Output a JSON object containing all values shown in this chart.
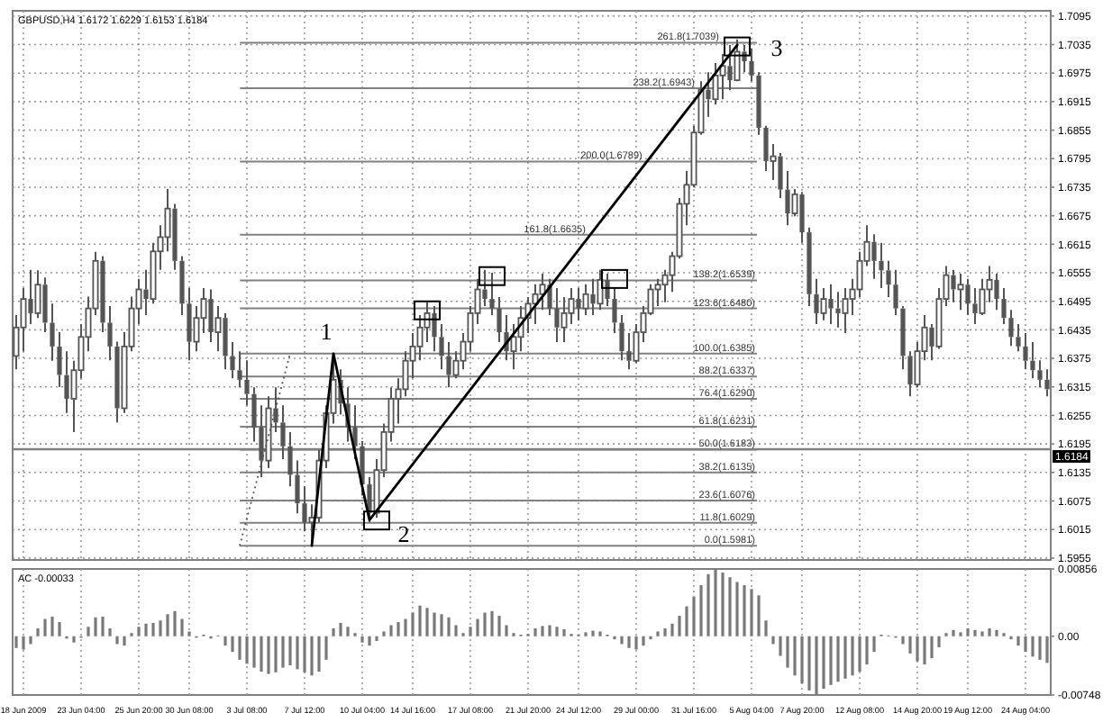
{
  "chart_data": [
    {
      "type": "candlestick",
      "title": "GBPUSD,H4  1.6172 1.6229 1.6153 1.6184",
      "color": "#555555",
      "tick_labels": "y",
      "grid": true,
      "ohlc": [
        [
          1.638,
          1.6466,
          1.6352,
          1.644
        ],
        [
          1.644,
          1.6523,
          1.639,
          1.65
        ],
        [
          1.65,
          1.6561,
          1.6447,
          1.647
        ],
        [
          1.647,
          1.656,
          1.646,
          1.653
        ],
        [
          1.653,
          1.6545,
          1.643,
          1.645
        ],
        [
          1.645,
          1.649,
          1.637,
          1.64
        ],
        [
          1.64,
          1.643,
          1.6315,
          1.634
        ],
        [
          1.634,
          1.639,
          1.626,
          1.629
        ],
        [
          1.629,
          1.637,
          1.622,
          1.635
        ],
        [
          1.635,
          1.6447,
          1.6333,
          1.642
        ],
        [
          1.642,
          1.6505,
          1.639,
          1.648
        ],
        [
          1.648,
          1.6599,
          1.6466,
          1.658
        ],
        [
          1.658,
          1.659,
          1.643,
          1.645
        ],
        [
          1.645,
          1.6485,
          1.6371,
          1.64
        ],
        [
          1.64,
          1.641,
          1.624,
          1.627
        ],
        [
          1.627,
          1.643,
          1.626,
          1.64
        ],
        [
          1.64,
          1.6505,
          1.639,
          1.648
        ],
        [
          1.648,
          1.6542,
          1.6447,
          1.652
        ],
        [
          1.652,
          1.6561,
          1.6466,
          1.65
        ],
        [
          1.65,
          1.6618,
          1.649,
          1.66
        ],
        [
          1.66,
          1.6655,
          1.6561,
          1.663
        ],
        [
          1.663,
          1.6731,
          1.66,
          1.669
        ],
        [
          1.669,
          1.67,
          1.6561,
          1.658
        ],
        [
          1.658,
          1.659,
          1.6466,
          1.649
        ],
        [
          1.649,
          1.6523,
          1.6371,
          1.641
        ],
        [
          1.641,
          1.6485,
          1.639,
          1.646
        ],
        [
          1.646,
          1.6523,
          1.6428,
          1.65
        ],
        [
          1.65,
          1.652,
          1.6409,
          1.643
        ],
        [
          1.643,
          1.6485,
          1.639,
          1.646
        ],
        [
          1.646,
          1.647,
          1.6352,
          1.638
        ],
        [
          1.638,
          1.6409,
          1.6333,
          1.635
        ],
        [
          1.635,
          1.639,
          1.6314,
          1.633
        ],
        [
          1.633,
          1.6371,
          1.6276,
          1.63
        ],
        [
          1.63,
          1.6314,
          1.62,
          1.623
        ],
        [
          1.623,
          1.6276,
          1.6125,
          1.616
        ],
        [
          1.616,
          1.6295,
          1.6144,
          1.627
        ],
        [
          1.627,
          1.6314,
          1.622,
          1.624
        ],
        [
          1.624,
          1.6276,
          1.6163,
          1.619
        ],
        [
          1.619,
          1.622,
          1.6106,
          1.613
        ],
        [
          1.613,
          1.616,
          1.6049,
          1.607
        ],
        [
          1.607,
          1.6106,
          1.6011,
          1.603
        ],
        [
          1.603,
          1.6068,
          1.5981,
          1.604
        ],
        [
          1.604,
          1.6182,
          1.603,
          1.616
        ],
        [
          1.616,
          1.6276,
          1.6144,
          1.626
        ],
        [
          1.626,
          1.6385,
          1.6238,
          1.633
        ],
        [
          1.633,
          1.6352,
          1.6257,
          1.628
        ],
        [
          1.628,
          1.6314,
          1.62,
          1.623
        ],
        [
          1.623,
          1.6276,
          1.6163,
          1.619
        ],
        [
          1.619,
          1.6201,
          1.6087,
          1.611
        ],
        [
          1.611,
          1.6125,
          1.603,
          1.605
        ],
        [
          1.605,
          1.6163,
          1.604,
          1.614
        ],
        [
          1.614,
          1.6238,
          1.6125,
          1.622
        ],
        [
          1.622,
          1.6314,
          1.62,
          1.629
        ],
        [
          1.629,
          1.6333,
          1.6238,
          1.631
        ],
        [
          1.631,
          1.639,
          1.6295,
          1.637
        ],
        [
          1.637,
          1.6428,
          1.6333,
          1.64
        ],
        [
          1.64,
          1.6466,
          1.6371,
          1.644
        ],
        [
          1.644,
          1.6493,
          1.6409,
          1.647
        ],
        [
          1.647,
          1.6485,
          1.639,
          1.642
        ],
        [
          1.642,
          1.6447,
          1.6352,
          1.638
        ],
        [
          1.638,
          1.6409,
          1.6314,
          1.634
        ],
        [
          1.634,
          1.639,
          1.6333,
          1.637
        ],
        [
          1.637,
          1.6428,
          1.6352,
          1.641
        ],
        [
          1.641,
          1.6485,
          1.639,
          1.647
        ],
        [
          1.647,
          1.6542,
          1.6447,
          1.652
        ],
        [
          1.652,
          1.6561,
          1.6485,
          1.65
        ],
        [
          1.65,
          1.6555,
          1.6466,
          1.648
        ],
        [
          1.648,
          1.6504,
          1.6409,
          1.643
        ],
        [
          1.643,
          1.6466,
          1.6371,
          1.639
        ],
        [
          1.639,
          1.6447,
          1.6352,
          1.642
        ],
        [
          1.642,
          1.6485,
          1.639,
          1.646
        ],
        [
          1.646,
          1.6504,
          1.6428,
          1.649
        ],
        [
          1.649,
          1.6531,
          1.6447,
          1.651
        ],
        [
          1.651,
          1.6553,
          1.6477,
          1.653
        ],
        [
          1.653,
          1.6542,
          1.6466,
          1.648
        ],
        [
          1.648,
          1.6523,
          1.6409,
          1.644
        ],
        [
          1.644,
          1.6504,
          1.6409,
          1.647
        ],
        [
          1.647,
          1.6523,
          1.6447,
          1.65
        ],
        [
          1.65,
          1.6523,
          1.6455,
          1.648
        ],
        [
          1.648,
          1.6531,
          1.6466,
          1.651
        ],
        [
          1.651,
          1.6542,
          1.6466,
          1.649
        ],
        [
          1.649,
          1.6561,
          1.6477,
          1.654
        ],
        [
          1.654,
          1.6553,
          1.6485,
          1.65
        ],
        [
          1.65,
          1.6523,
          1.6428,
          1.645
        ],
        [
          1.645,
          1.6466,
          1.6371,
          1.639
        ],
        [
          1.639,
          1.6428,
          1.6352,
          1.637
        ],
        [
          1.637,
          1.6447,
          1.6365,
          1.643
        ],
        [
          1.643,
          1.6485,
          1.6409,
          1.647
        ],
        [
          1.647,
          1.6531,
          1.6466,
          1.652
        ],
        [
          1.652,
          1.6542,
          1.6485,
          1.653
        ],
        [
          1.653,
          1.6561,
          1.6493,
          1.655
        ],
        [
          1.655,
          1.6599,
          1.6515,
          1.659
        ],
        [
          1.659,
          1.6712,
          1.6585,
          1.67
        ],
        [
          1.67,
          1.6769,
          1.6655,
          1.674
        ],
        [
          1.674,
          1.6864,
          1.6735,
          1.685
        ],
        [
          1.685,
          1.6958,
          1.6845,
          1.694
        ],
        [
          1.694,
          1.6977,
          1.6883,
          1.692
        ],
        [
          1.692,
          1.6996,
          1.6909,
          1.697
        ],
        [
          1.697,
          1.7015,
          1.692,
          1.699
        ],
        [
          1.699,
          1.7034,
          1.6939,
          1.696
        ],
        [
          1.696,
          1.7046,
          1.6958,
          1.702
        ],
        [
          1.702,
          1.7034,
          1.6977,
          1.7
        ],
        [
          1.7,
          1.7027,
          1.6958,
          1.697
        ],
        [
          1.697,
          1.6977,
          1.6845,
          1.686
        ],
        [
          1.686,
          1.6864,
          1.6769,
          1.679
        ],
        [
          1.679,
          1.6826,
          1.675,
          1.68
        ],
        [
          1.68,
          1.6807,
          1.6712,
          1.673
        ],
        [
          1.673,
          1.6769,
          1.6655,
          1.668
        ],
        [
          1.668,
          1.6731,
          1.6674,
          1.672
        ],
        [
          1.672,
          1.6725,
          1.6618,
          1.664
        ],
        [
          1.664,
          1.665,
          1.6485,
          1.651
        ],
        [
          1.651,
          1.6542,
          1.6447,
          1.647
        ],
        [
          1.647,
          1.6523,
          1.6455,
          1.65
        ],
        [
          1.65,
          1.6531,
          1.6447,
          1.648
        ],
        [
          1.648,
          1.6515,
          1.644,
          1.647
        ],
        [
          1.647,
          1.6523,
          1.6428,
          1.65
        ],
        [
          1.65,
          1.6542,
          1.6466,
          1.652
        ],
        [
          1.652,
          1.6599,
          1.6504,
          1.658
        ],
        [
          1.658,
          1.6655,
          1.6569,
          1.662
        ],
        [
          1.662,
          1.6636,
          1.6542,
          1.658
        ],
        [
          1.658,
          1.6618,
          1.6523,
          1.656
        ],
        [
          1.656,
          1.658,
          1.6504,
          1.653
        ],
        [
          1.653,
          1.6561,
          1.6466,
          1.648
        ],
        [
          1.648,
          1.6485,
          1.6352,
          1.638
        ],
        [
          1.638,
          1.639,
          1.6295,
          1.632
        ],
        [
          1.632,
          1.6409,
          1.6314,
          1.639
        ],
        [
          1.639,
          1.6466,
          1.6371,
          1.644
        ],
        [
          1.644,
          1.6447,
          1.6371,
          1.64
        ],
        [
          1.64,
          1.6523,
          1.6395,
          1.65
        ],
        [
          1.65,
          1.6569,
          1.6485,
          1.655
        ],
        [
          1.655,
          1.6561,
          1.6493,
          1.652
        ],
        [
          1.652,
          1.6553,
          1.6477,
          1.653
        ],
        [
          1.653,
          1.6542,
          1.6466,
          1.649
        ],
        [
          1.649,
          1.6523,
          1.6447,
          1.647
        ],
        [
          1.647,
          1.6542,
          1.6466,
          1.652
        ],
        [
          1.652,
          1.6569,
          1.6493,
          1.654
        ],
        [
          1.654,
          1.6553,
          1.6477,
          1.65
        ],
        [
          1.65,
          1.6523,
          1.6447,
          1.646
        ],
        [
          1.646,
          1.6477,
          1.6401,
          1.642
        ],
        [
          1.642,
          1.6447,
          1.639,
          1.64
        ],
        [
          1.64,
          1.6428,
          1.6352,
          1.637
        ],
        [
          1.637,
          1.6409,
          1.6333,
          1.635
        ],
        [
          1.635,
          1.6371,
          1.6314,
          1.633
        ],
        [
          1.633,
          1.6352,
          1.6295,
          1.631
        ]
      ],
      "series": [
        {
          "type": "line",
          "color": "#000000",
          "values": [
            null,
            null,
            null,
            null,
            null,
            null,
            null,
            null,
            null,
            null,
            null,
            null,
            null,
            null,
            null,
            null,
            null,
            null,
            null,
            null,
            null,
            null,
            null,
            null,
            null,
            null,
            null,
            null,
            null,
            null,
            null,
            null,
            null,
            null,
            null,
            null,
            null,
            null,
            null,
            null,
            null,
            1.5981,
            null,
            null,
            1.6385,
            null,
            null,
            null,
            null,
            1.6035,
            null,
            null,
            null,
            null,
            null,
            null,
            null,
            null,
            null,
            null,
            null,
            null,
            null,
            null,
            null,
            null,
            null,
            null,
            null,
            null,
            null,
            null,
            null,
            null,
            null,
            null,
            null,
            null,
            null,
            null,
            null,
            null,
            null,
            null,
            null,
            null,
            null,
            null,
            null,
            null,
            null,
            null,
            null,
            null,
            null,
            null,
            null,
            null,
            null,
            null,
            1.7034,
            null,
            null,
            null,
            null,
            null,
            null,
            null,
            null,
            null,
            null,
            null,
            null,
            null,
            null,
            null,
            null,
            null,
            null,
            null,
            null,
            null,
            null,
            null,
            null,
            null,
            null,
            null,
            null,
            null,
            null,
            null,
            null,
            null,
            null,
            null,
            null,
            null,
            null,
            null,
            null,
            null,
            null,
            null
          ]
        },
        {
          "type": "line",
          "color": "#555555",
          "line_style": "dotted",
          "values": [
            null,
            null,
            null,
            null,
            null,
            null,
            null,
            null,
            null,
            null,
            null,
            null,
            null,
            null,
            null,
            null,
            null,
            null,
            null,
            null,
            null,
            null,
            null,
            null,
            null,
            null,
            null,
            null,
            null,
            null,
            null,
            1.5981,
            null,
            null,
            null,
            null,
            null,
            null,
            1.6385,
            null,
            null,
            null,
            null,
            null,
            null,
            null,
            null,
            null,
            null,
            null,
            null,
            null,
            null,
            null,
            null,
            null,
            null,
            null,
            null,
            null,
            null,
            null,
            null,
            null,
            null,
            null,
            null,
            null,
            null,
            null,
            null,
            null,
            null,
            null,
            null,
            null,
            null,
            null,
            null,
            null,
            null,
            null,
            null,
            null,
            null,
            null,
            null,
            null,
            null,
            null,
            null,
            null,
            null,
            null,
            null,
            null,
            null,
            null,
            null,
            null,
            null,
            null,
            null,
            null,
            null,
            null,
            null,
            null,
            null,
            null,
            null,
            null,
            null,
            null,
            null,
            null,
            null,
            null,
            null,
            null,
            null,
            null,
            null,
            null,
            null,
            null,
            null,
            null,
            null,
            null,
            null,
            null,
            null,
            null,
            null,
            null,
            null,
            null,
            null,
            null,
            null,
            null,
            null,
            null
          ]
        },
        {
          "type": "scatter",
          "color": "#000000",
          "marker": "square",
          "values": [
            null,
            null,
            null,
            null,
            null,
            null,
            null,
            null,
            null,
            null,
            null,
            null,
            null,
            null,
            null,
            null,
            null,
            null,
            null,
            null,
            null,
            null,
            null,
            null,
            null,
            null,
            null,
            null,
            null,
            null,
            null,
            null,
            null,
            null,
            null,
            null,
            null,
            null,
            null,
            null,
            null,
            null,
            null,
            null,
            null,
            null,
            null,
            null,
            null,
            null,
            1.6034,
            null,
            null,
            null,
            null,
            null,
            null,
            1.6476,
            null,
            null,
            null,
            null,
            null,
            null,
            null,
            null,
            1.6548,
            null,
            null,
            null,
            null,
            null,
            null,
            null,
            null,
            null,
            null,
            null,
            null,
            null,
            null,
            null,
            null,
            1.6542,
            null,
            null,
            null,
            null,
            null,
            null,
            null,
            null,
            null,
            null,
            null,
            null,
            null,
            null,
            null,
            null,
            1.7031,
            null,
            null,
            null,
            null,
            null,
            null,
            null,
            null,
            null,
            null,
            null,
            null,
            null,
            null,
            null,
            null,
            null,
            null,
            null,
            null,
            null,
            null,
            null,
            null,
            null,
            null,
            null,
            null,
            null,
            null,
            null,
            null,
            null,
            null,
            null,
            null,
            null,
            null,
            null,
            null,
            null,
            null,
            null
          ]
        }
      ],
      "annotations": [
        "1",
        "2",
        "3"
      ],
      "ref_lines": [
        {
          "axis": "y",
          "value": 1.6184,
          "label": "1.6184",
          "color": "#808080"
        },
        {
          "axis": "y",
          "value": 1.7039,
          "label": "261.8(1.7039)",
          "color": "#808080"
        },
        {
          "axis": "y",
          "value": 1.6943,
          "label": "238.2(1.6943)",
          "color": "#808080"
        },
        {
          "axis": "y",
          "value": 1.6789,
          "label": "200.0(1.6789)",
          "color": "#808080"
        },
        {
          "axis": "y",
          "value": 1.6635,
          "label": "161.8(1.6635)",
          "color": "#808080"
        },
        {
          "axis": "y",
          "value": 1.6539,
          "label": "138.2(1.6539)",
          "color": "#808080"
        },
        {
          "axis": "y",
          "value": 1.648,
          "label": "123.6(1.6480)",
          "color": "#808080"
        },
        {
          "axis": "y",
          "value": 1.6385,
          "label": "100.0(1.6385)",
          "color": "#808080"
        },
        {
          "axis": "y",
          "value": 1.6337,
          "label": "88.2(1.6337)",
          "color": "#808080"
        },
        {
          "axis": "y",
          "value": 1.629,
          "label": "76.4(1.6290)",
          "color": "#808080"
        },
        {
          "axis": "y",
          "value": 1.6231,
          "label": "61.8(1.6231)",
          "color": "#808080"
        },
        {
          "axis": "y",
          "value": 1.6183,
          "label": "50.0(1.6183)",
          "color": "#808080"
        },
        {
          "axis": "y",
          "value": 1.6135,
          "label": "38.2(1.6135)",
          "color": "#808080"
        },
        {
          "axis": "y",
          "value": 1.6076,
          "label": "23.6(1.6076)",
          "color": "#808080"
        },
        {
          "axis": "y",
          "value": 1.6029,
          "label": "11.8(1.6029)",
          "color": "#808080"
        },
        {
          "axis": "y",
          "value": 1.5981,
          "label": "0.0(1.5981)",
          "color": "#808080"
        }
      ],
      "ylim": [
        1.5951,
        1.7106
      ],
      "yticks": [
        1.5955,
        1.6015,
        1.6075,
        1.6135,
        1.6195,
        1.6255,
        1.6315,
        1.6375,
        1.6435,
        1.6495,
        1.6555,
        1.6615,
        1.6675,
        1.6735,
        1.6795,
        1.6855,
        1.6915,
        1.6975,
        1.7035,
        1.7095
      ]
    },
    {
      "type": "bar",
      "title": "AC -0.00033",
      "color": "#7a7a7a",
      "grid": "x",
      "categories": [
        null,
        "18 Jun 2009",
        null,
        null,
        null,
        null,
        null,
        null,
        null,
        "23 Jun 04:00",
        null,
        null,
        null,
        null,
        null,
        null,
        null,
        "25 Jun 20:00",
        null,
        null,
        null,
        null,
        null,
        null,
        "30 Jun 08:00",
        null,
        null,
        null,
        null,
        null,
        null,
        null,
        "3 Jul 08:00",
        null,
        null,
        null,
        null,
        null,
        null,
        null,
        "7 Jul 12:00",
        null,
        null,
        null,
        null,
        null,
        null,
        null,
        "10 Jul 04:00",
        null,
        null,
        null,
        null,
        null,
        null,
        "14 Jul 16:00",
        null,
        null,
        null,
        null,
        null,
        null,
        null,
        "17 Jul 08:00",
        null,
        null,
        null,
        null,
        null,
        null,
        null,
        "21 Jul 20:00",
        null,
        null,
        null,
        null,
        null,
        null,
        "24 Jul 12:00",
        null,
        null,
        null,
        null,
        null,
        null,
        null,
        "29 Jul 00:00",
        null,
        null,
        null,
        null,
        null,
        null,
        null,
        "31 Jul 16:00",
        null,
        null,
        null,
        null,
        null,
        null,
        null,
        "5 Aug 04:00",
        null,
        null,
        null,
        null,
        null,
        null,
        "7 Aug 20:00",
        null,
        null,
        null,
        null,
        null,
        null,
        null,
        "12 Aug 08:00",
        null,
        null,
        null,
        null,
        null,
        null,
        null,
        "14 Aug 20:00",
        null,
        null,
        null,
        null,
        null,
        null,
        "19 Aug 12:00",
        null,
        null,
        null,
        null,
        null,
        null,
        null,
        "24 Aug 04:00",
        null,
        null,
        null
      ],
      "values": [
        -0.0015,
        -0.0017,
        -0.001,
        0.001,
        0.0022,
        0.0025,
        0.0018,
        -0.0003,
        -0.0008,
        -0.0002,
        0.0012,
        0.0024,
        0.0025,
        0.001,
        -0.001,
        -0.0012,
        0.0004,
        0.0012,
        0.0016,
        0.0017,
        0.002,
        0.0028,
        0.0032,
        0.0022,
        0.0006,
        -0.0002,
        0.0002,
        -0.0003,
        0.0001,
        -0.0012,
        -0.002,
        -0.003,
        -0.0035,
        -0.004,
        -0.0045,
        -0.0048,
        -0.0046,
        -0.004,
        -0.0037,
        -0.0042,
        -0.0046,
        -0.005,
        -0.0045,
        -0.003,
        0.001,
        0.0017,
        0.0012,
        0.0004,
        -0.0008,
        -0.0012,
        -0.0006,
        0.0006,
        0.0014,
        0.0018,
        0.0022,
        0.003,
        0.0039,
        0.0036,
        0.003,
        0.0028,
        0.0024,
        0.0014,
        0.0004,
        0.0012,
        0.0022,
        0.003,
        0.0032,
        0.0026,
        0.0014,
        0.0004,
        0.0002,
        0.0003,
        0.001,
        0.0013,
        0.0014,
        0.0012,
        0.0009,
        0.0003,
        0.0002,
        0.0005,
        0.0007,
        0.0006,
        0.0002,
        -0.0004,
        -0.001,
        -0.0015,
        -0.0017,
        -0.0012,
        -0.0004,
        0.0006,
        0.001,
        0.0016,
        0.0026,
        0.0038,
        0.005,
        0.0065,
        0.0079,
        0.0085,
        0.0081,
        0.0075,
        0.0069,
        0.0065,
        0.006,
        0.0052,
        0.002,
        -0.001,
        -0.0025,
        -0.004,
        -0.005,
        -0.006,
        -0.0069,
        -0.0074,
        -0.0067,
        -0.0062,
        -0.0058,
        -0.0054,
        -0.005,
        -0.0045,
        -0.0036,
        -0.002,
        0.0002,
        0.0001,
        -0.0002,
        -0.001,
        -0.0022,
        -0.0032,
        -0.0036,
        -0.0028,
        -0.0014,
        0.0004,
        0.0008,
        0.0005,
        0.001,
        0.0008,
        0.0006,
        0.001,
        0.0008,
        0.0004,
        -0.0004,
        -0.0012,
        -0.002,
        -0.0026,
        -0.003,
        -0.0034
      ],
      "ylim": [
        -0.00748,
        0.00856
      ],
      "yticks": [
        -0.00748,
        {
          "value": 0,
          "label": "0.00"
        },
        0.00856
      ]
    }
  ]
}
